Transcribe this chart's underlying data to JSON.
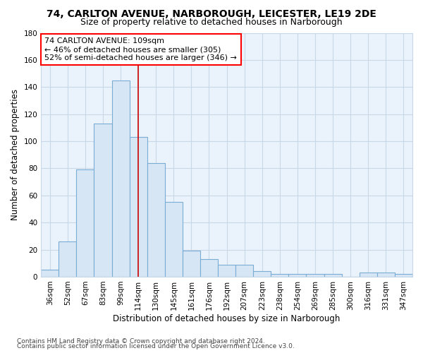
{
  "title1": "74, CARLTON AVENUE, NARBOROUGH, LEICESTER, LE19 2DE",
  "title2": "Size of property relative to detached houses in Narborough",
  "xlabel": "Distribution of detached houses by size in Narborough",
  "ylabel": "Number of detached properties",
  "bar_labels": [
    "36sqm",
    "52sqm",
    "67sqm",
    "83sqm",
    "99sqm",
    "114sqm",
    "130sqm",
    "145sqm",
    "161sqm",
    "176sqm",
    "192sqm",
    "207sqm",
    "223sqm",
    "238sqm",
    "254sqm",
    "269sqm",
    "285sqm",
    "300sqm",
    "316sqm",
    "331sqm",
    "347sqm"
  ],
  "bar_values": [
    5,
    26,
    79,
    113,
    145,
    103,
    84,
    55,
    19,
    13,
    9,
    9,
    4,
    2,
    2,
    2,
    2,
    0,
    3,
    3,
    2
  ],
  "bar_color": "#d6e6f5",
  "bar_edge_color": "#7aadd4",
  "plot_bg_color": "#eaf2fb",
  "ylim": [
    0,
    180
  ],
  "yticks": [
    0,
    20,
    40,
    60,
    80,
    100,
    120,
    140,
    160,
    180
  ],
  "vline_x": 5.0,
  "vline_color": "#cc0000",
  "annotation_line1": "74 CARLTON AVENUE: 109sqm",
  "annotation_line2": "← 46% of detached houses are smaller (305)",
  "annotation_line3": "52% of semi-detached houses are larger (346) →",
  "footer1": "Contains HM Land Registry data © Crown copyright and database right 2024.",
  "footer2": "Contains public sector information licensed under the Open Government Licence v3.0.",
  "background_color": "#ffffff",
  "grid_color": "#c8d8e8",
  "title1_fontsize": 10,
  "title2_fontsize": 9,
  "axis_label_fontsize": 8.5,
  "tick_fontsize": 7.5,
  "annotation_fontsize": 8,
  "footer_fontsize": 6.5
}
